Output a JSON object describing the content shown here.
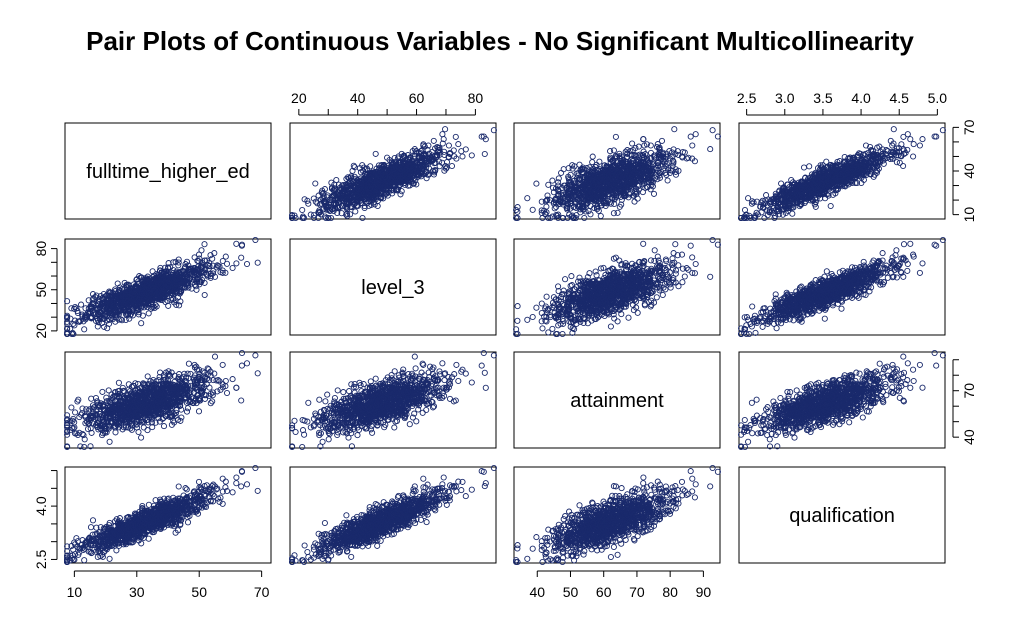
{
  "title": "Pair Plots of Continuous Variables - No Significant Multicollinearity",
  "chart_data": {
    "type": "scatter",
    "variables": [
      "fulltime_higher_ed",
      "level_3",
      "attainment",
      "qualification"
    ],
    "ranges": {
      "fulltime_higher_ed": [
        7,
        73
      ],
      "level_3": [
        17,
        87
      ],
      "attainment": [
        33,
        95
      ],
      "qualification": [
        2.4,
        5.1
      ]
    },
    "ticks": {
      "fulltime_higher_ed": {
        "side": "bottom",
        "values": [
          10,
          30,
          50,
          70
        ],
        "labels": [
          "10",
          "30",
          "50",
          "70"
        ]
      },
      "level_3": {
        "side": "top",
        "values": [
          20,
          30,
          40,
          50,
          60,
          70,
          80
        ],
        "labels": [
          "20",
          "",
          "40",
          "",
          "60",
          "",
          "80"
        ]
      },
      "attainment": {
        "side": "bottom",
        "values": [
          40,
          50,
          60,
          70,
          80,
          90
        ],
        "labels": [
          "40",
          "50",
          "60",
          "70",
          "80",
          "90"
        ]
      },
      "qualification": {
        "side": "top",
        "values": [
          2.5,
          3.0,
          3.5,
          4.0,
          4.5,
          5.0
        ],
        "labels": [
          "2.5",
          "3.0",
          "3.5",
          "4.0",
          "4.5",
          "5.0"
        ]
      }
    },
    "row_ticks": {
      "fulltime_higher_ed": {
        "side": "right",
        "values": [
          10,
          40,
          70
        ],
        "minor": [
          20,
          30,
          50,
          60
        ],
        "labels": [
          "10",
          "40",
          "70"
        ]
      },
      "level_3": {
        "side": "left",
        "values": [
          20,
          50,
          80
        ],
        "minor": [
          30,
          40,
          60,
          70
        ],
        "labels": [
          "20",
          "50",
          "80"
        ]
      },
      "attainment": {
        "side": "right",
        "values": [
          40,
          70
        ],
        "minor": [
          50,
          60,
          80,
          90
        ],
        "labels": [
          "40",
          "70"
        ]
      },
      "qualification": {
        "side": "left",
        "values": [
          2.5,
          4.0
        ],
        "minor": [
          3.0,
          3.5,
          4.5,
          5.0
        ],
        "labels": [
          "2.5",
          "4.0"
        ]
      }
    },
    "n_points": 1200,
    "point_color": "#1a2a6c",
    "correlation_note": "all variables positively correlated",
    "grid": false
  }
}
